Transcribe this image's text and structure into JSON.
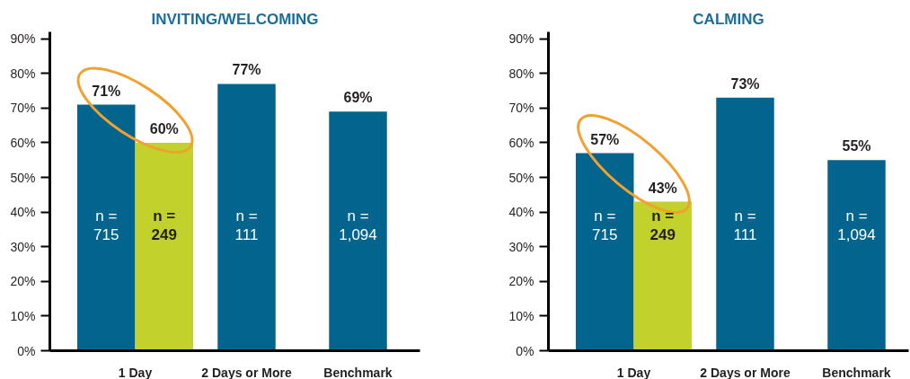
{
  "chart_data": [
    {
      "type": "bar",
      "title": "INVITING/WELCOMING",
      "categories": [
        "1 Day",
        "2 Days or More",
        "Benchmark"
      ],
      "series": [
        {
          "color": "#03648d",
          "values": [
            71,
            77,
            69
          ],
          "value_labels": [
            "71%",
            "77%",
            "69%"
          ]
        },
        {
          "color": "#c2d12b",
          "values": [
            60,
            null,
            null
          ],
          "value_labels": [
            "60%",
            null,
            null
          ]
        }
      ],
      "ylim": [
        0,
        92
      ],
      "yticks": [
        {
          "value": 0,
          "label": "0%"
        },
        {
          "value": 10,
          "label": "10%"
        },
        {
          "value": 20,
          "label": "20%"
        },
        {
          "value": 30,
          "label": "30%"
        },
        {
          "value": 40,
          "label": "40%"
        },
        {
          "value": 50,
          "label": "50%"
        },
        {
          "value": 60,
          "label": "60%"
        },
        {
          "value": 70,
          "label": "70%"
        },
        {
          "value": 80,
          "label": "80%"
        },
        {
          "value": 90,
          "label": "90%"
        }
      ],
      "grid": false,
      "annotations": [
        "n =\n715",
        "n =\n249",
        "n =\n111",
        "n =\n1,094"
      ]
    },
    {
      "type": "bar",
      "title": "CALMING",
      "categories": [
        "1 Day",
        "2 Days or More",
        "Benchmark"
      ],
      "series": [
        {
          "color": "#03648d",
          "values": [
            57,
            73,
            55
          ],
          "value_labels": [
            "57%",
            "73%",
            "55%"
          ]
        },
        {
          "color": "#c2d12b",
          "values": [
            43,
            null,
            null
          ],
          "value_labels": [
            "43%",
            null,
            null
          ]
        }
      ],
      "ylim": [
        0,
        92
      ],
      "yticks": [
        {
          "value": 0,
          "label": "0%"
        },
        {
          "value": 10,
          "label": "10%"
        },
        {
          "value": 20,
          "label": "20%"
        },
        {
          "value": 30,
          "label": "30%"
        },
        {
          "value": 40,
          "label": "40%"
        },
        {
          "value": 50,
          "label": "50%"
        },
        {
          "value": 60,
          "label": "60%"
        },
        {
          "value": 70,
          "label": "70%"
        },
        {
          "value": 80,
          "label": "80%"
        },
        {
          "value": 90,
          "label": "90%"
        }
      ],
      "grid": false,
      "annotations": [
        "n =\n715",
        "n =\n249",
        "n =\n111",
        "n =\n1,094"
      ]
    }
  ]
}
